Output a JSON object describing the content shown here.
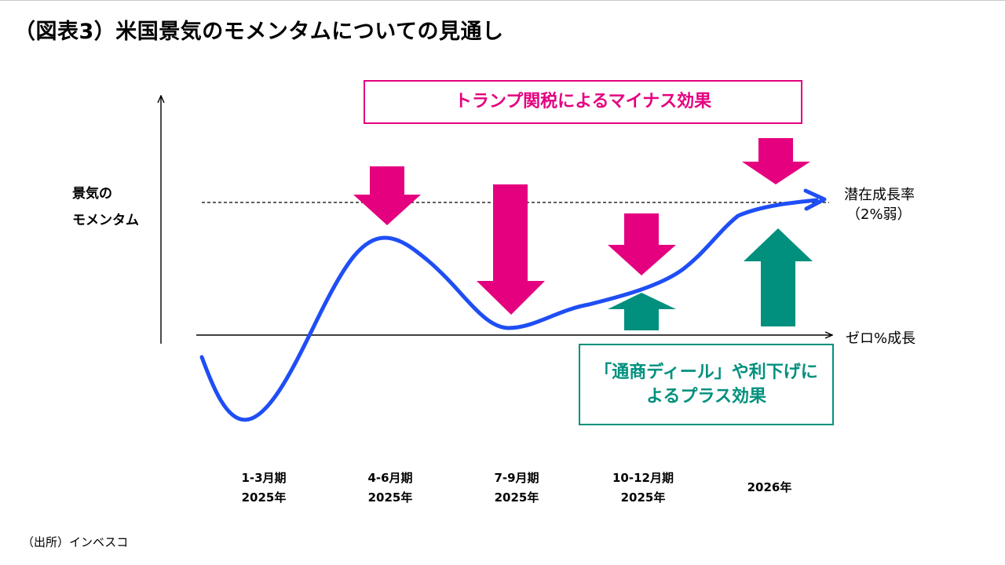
{
  "title": "（図表3）米国景気のモメンタムについての見通し",
  "y_axis": {
    "line1": "景気の",
    "line2": "モメンタム"
  },
  "potential_line": {
    "line1": "潜在成長率",
    "line2": "（2%弱）"
  },
  "zero_line": {
    "label": "ゼロ%成長"
  },
  "negative_box": {
    "text": "トランプ関税によるマイナス効果"
  },
  "positive_box": {
    "line1": "「通商ディール」や利下げに",
    "line2": "よるプラス効果"
  },
  "periods": [
    {
      "line1": "1-3月期",
      "line2": "2025年"
    },
    {
      "line1": "4-6月期",
      "line2": "2025年"
    },
    {
      "line1": "7-9月期",
      "line2": "2025年"
    },
    {
      "line1": "10-12月期",
      "line2": "2025年"
    },
    {
      "line1": "",
      "line2": "2026年"
    }
  ],
  "source": "（出所）インベスコ",
  "colors": {
    "negative": "#e4007f",
    "positive": "#00907d",
    "momentum_curve": "#1f4ef5"
  },
  "icons": {
    "negative_effect": "arrow-down-icon",
    "positive_effect": "arrow-up-icon"
  }
}
